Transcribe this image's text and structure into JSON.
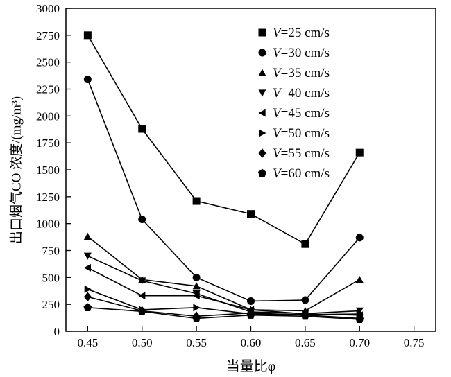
{
  "chart_data": {
    "type": "line",
    "title": "",
    "xlabel": "当量比φ",
    "ylabel": "出口烟气CO 浓度/(mg/m³)",
    "xlim": [
      0.43,
      0.77
    ],
    "ylim": [
      0,
      3000
    ],
    "x_ticks": [
      0.45,
      0.5,
      0.55,
      0.6,
      0.65,
      0.7,
      0.75
    ],
    "y_ticks": [
      0,
      250,
      500,
      750,
      1000,
      1250,
      1500,
      1750,
      2000,
      2250,
      2500,
      2750,
      3000
    ],
    "x": [
      0.45,
      0.5,
      0.55,
      0.6,
      0.65,
      0.7
    ],
    "grid": false,
    "legend_position": "upper-right-inside",
    "line_color": "#000000",
    "series": [
      {
        "name": "V=25 cm/s",
        "marker": "square",
        "values": [
          2750,
          1880,
          1210,
          1090,
          810,
          1660
        ]
      },
      {
        "name": "V=30 cm/s",
        "marker": "circle",
        "values": [
          2340,
          1040,
          500,
          280,
          290,
          870
        ]
      },
      {
        "name": "V=35 cm/s",
        "marker": "triangle-up",
        "values": [
          880,
          480,
          420,
          200,
          190,
          480
        ]
      },
      {
        "name": "V=40 cm/s",
        "marker": "triangle-down",
        "values": [
          700,
          470,
          350,
          180,
          165,
          190
        ]
      },
      {
        "name": "V=45 cm/s",
        "marker": "triangle-left",
        "values": [
          590,
          330,
          330,
          200,
          160,
          150
        ]
      },
      {
        "name": "V=50 cm/s",
        "marker": "triangle-right",
        "values": [
          390,
          200,
          220,
          160,
          155,
          160
        ]
      },
      {
        "name": "V=55 cm/s",
        "marker": "diamond",
        "values": [
          320,
          190,
          140,
          170,
          150,
          120
        ]
      },
      {
        "name": "V=60 cm/s",
        "marker": "pentagon",
        "values": [
          220,
          185,
          120,
          150,
          140,
          110
        ]
      }
    ]
  }
}
